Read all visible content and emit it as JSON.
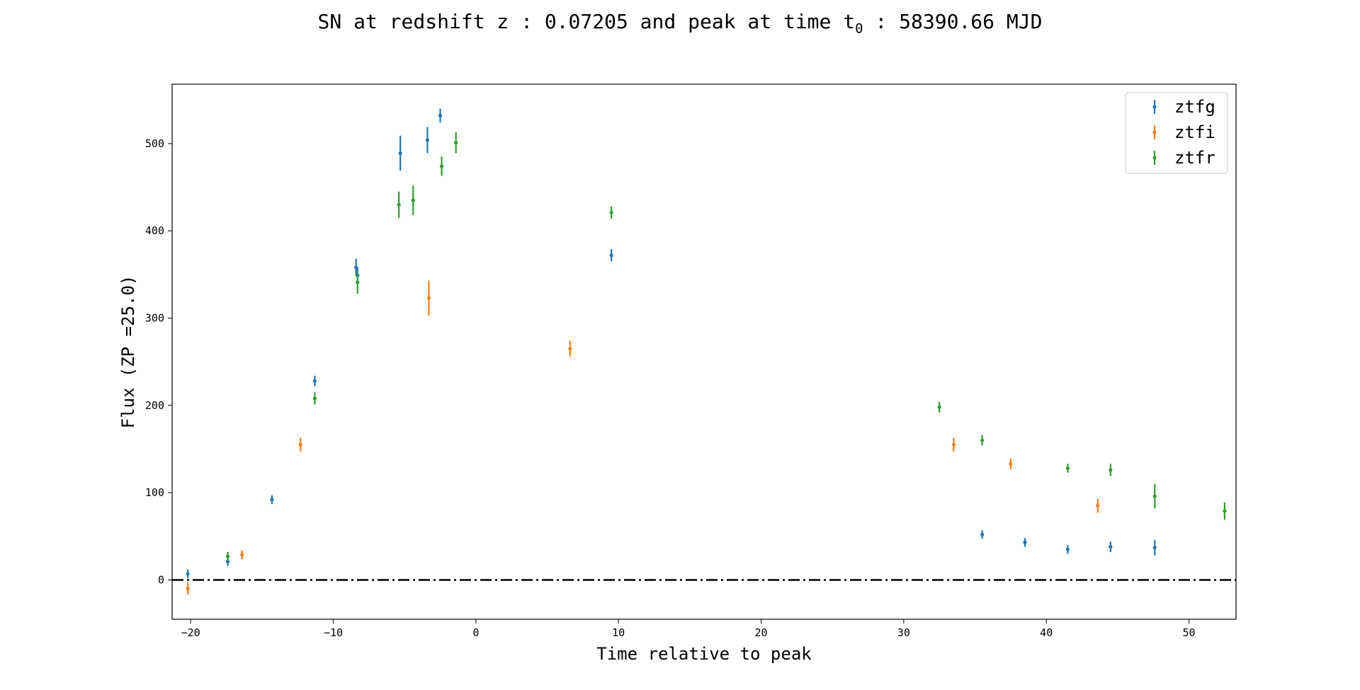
{
  "chart_data": {
    "type": "scatter",
    "title": {
      "prefix": "SN at redshift z : 0.07205 and peak at time t",
      "subscript": "0",
      "suffix": " : 58390.66 MJD"
    },
    "xlabel": "Time relative to peak",
    "ylabel": "Flux (ZP =25.0)",
    "xlim": [
      -21.3,
      53.3
    ],
    "ylim": [
      -45,
      568
    ],
    "xticks": [
      -20,
      -10,
      0,
      10,
      20,
      30,
      40,
      50
    ],
    "xtick_labels": [
      "−20",
      "−10",
      "0",
      "10",
      "20",
      "30",
      "40",
      "50"
    ],
    "yticks": [
      0,
      100,
      200,
      300,
      400,
      500
    ],
    "ytick_labels": [
      "0",
      "100",
      "200",
      "300",
      "400",
      "500"
    ],
    "grid": false,
    "legend_position": "top-right",
    "reference_line": {
      "y": 0,
      "style": "dash-dot",
      "color": "#000000"
    },
    "series": [
      {
        "name": "ztfg",
        "color": "#1f77b4",
        "points": [
          {
            "x": -20.2,
            "y": 7,
            "err": 5
          },
          {
            "x": -17.4,
            "y": 21,
            "err": 5
          },
          {
            "x": -14.3,
            "y": 92,
            "err": 5
          },
          {
            "x": -11.3,
            "y": 228,
            "err": 6
          },
          {
            "x": -8.4,
            "y": 358,
            "err": 10
          },
          {
            "x": -8.3,
            "y": 349,
            "err": 9
          },
          {
            "x": -5.3,
            "y": 489,
            "err": 20
          },
          {
            "x": -3.4,
            "y": 504,
            "err": 15
          },
          {
            "x": -2.5,
            "y": 532,
            "err": 8
          },
          {
            "x": 9.5,
            "y": 372,
            "err": 7
          },
          {
            "x": 35.5,
            "y": 52,
            "err": 5
          },
          {
            "x": 38.5,
            "y": 43,
            "err": 5
          },
          {
            "x": 41.5,
            "y": 35,
            "err": 5
          },
          {
            "x": 44.5,
            "y": 38,
            "err": 6
          },
          {
            "x": 47.6,
            "y": 37,
            "err": 9
          }
        ]
      },
      {
        "name": "ztfi",
        "color": "#ff7f0e",
        "points": [
          {
            "x": -20.2,
            "y": -10,
            "err": 7
          },
          {
            "x": -16.4,
            "y": 29,
            "err": 5
          },
          {
            "x": -12.3,
            "y": 155,
            "err": 8
          },
          {
            "x": -3.3,
            "y": 323,
            "err": 20
          },
          {
            "x": 6.6,
            "y": 265,
            "err": 9
          },
          {
            "x": 33.5,
            "y": 155,
            "err": 8
          },
          {
            "x": 37.5,
            "y": 133,
            "err": 6
          },
          {
            "x": 43.6,
            "y": 85,
            "err": 8
          }
        ]
      },
      {
        "name": "ztfr",
        "color": "#2ca02c",
        "points": [
          {
            "x": -17.4,
            "y": 27,
            "err": 5
          },
          {
            "x": -11.3,
            "y": 208,
            "err": 7
          },
          {
            "x": -8.3,
            "y": 341,
            "err": 13
          },
          {
            "x": -5.4,
            "y": 430,
            "err": 15
          },
          {
            "x": -4.4,
            "y": 435,
            "err": 17
          },
          {
            "x": -2.4,
            "y": 474,
            "err": 11
          },
          {
            "x": -1.4,
            "y": 501,
            "err": 12
          },
          {
            "x": 9.5,
            "y": 421,
            "err": 7
          },
          {
            "x": 32.5,
            "y": 198,
            "err": 6
          },
          {
            "x": 35.5,
            "y": 160,
            "err": 6
          },
          {
            "x": 41.5,
            "y": 128,
            "err": 5
          },
          {
            "x": 44.5,
            "y": 126,
            "err": 7
          },
          {
            "x": 47.6,
            "y": 96,
            "err": 14
          },
          {
            "x": 52.5,
            "y": 79,
            "err": 10
          }
        ]
      }
    ]
  }
}
